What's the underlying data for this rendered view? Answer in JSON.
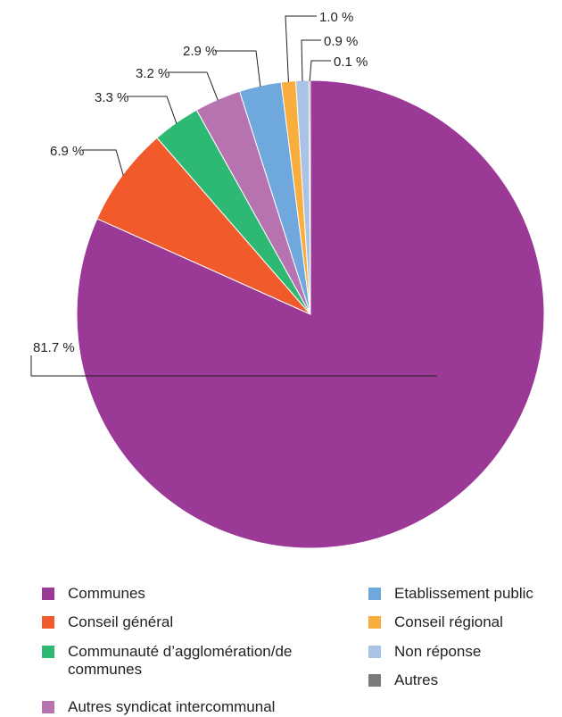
{
  "chart_data": {
    "type": "pie",
    "title": "",
    "start_angle_deg": 90,
    "direction": "clockwise",
    "slices": [
      {
        "label": "Communes",
        "value": 81.7,
        "display": "81.7 %",
        "color": "#9b3a96"
      },
      {
        "label": "Conseil général",
        "value": 6.9,
        "display": "6.9 %",
        "color": "#f15a2b"
      },
      {
        "label": "Communauté d’agglomération/de communes",
        "value": 3.3,
        "display": "3.3 %",
        "color": "#2db874"
      },
      {
        "label": "Autres syndicat intercommunal",
        "value": 3.2,
        "display": "3.2 %",
        "color": "#b673b0"
      },
      {
        "label": "Etablissement public",
        "value": 2.9,
        "display": "2.9 %",
        "color": "#6fa8dc"
      },
      {
        "label": "Conseil régional",
        "value": 1.0,
        "display": "1.0 %",
        "color": "#f9ad3c"
      },
      {
        "label": "Non réponse",
        "value": 0.9,
        "display": "0.9 %",
        "color": "#a9c2e5"
      },
      {
        "label": "Autres",
        "value": 0.1,
        "display": "0.1 %",
        "color": "#7a7a7a"
      }
    ],
    "legend_position": "bottom"
  }
}
